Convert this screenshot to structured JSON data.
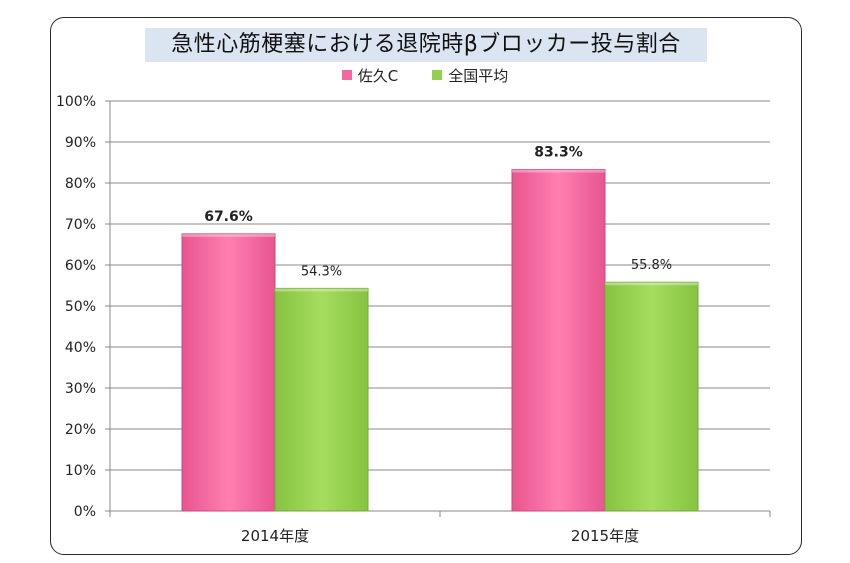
{
  "chart_data": {
    "type": "bar",
    "title": "急性心筋梗塞における退院時βブロッカー投与割合",
    "categories": [
      "2014年度",
      "2015年度"
    ],
    "series": [
      {
        "name": "佐久C",
        "values": [
          67.6,
          83.3
        ],
        "labels": [
          "67.6%",
          "83.3%"
        ],
        "color": "#f4689f"
      },
      {
        "name": "全国平均",
        "values": [
          54.3,
          55.8
        ],
        "labels": [
          "54.3%",
          "55.8%"
        ],
        "color": "#92d050"
      }
    ],
    "ylim": [
      0,
      100
    ],
    "yticks": [
      "0%",
      "10%",
      "20%",
      "30%",
      "40%",
      "50%",
      "60%",
      "70%",
      "80%",
      "90%",
      "100%"
    ],
    "grid": true,
    "legend_position": "top"
  }
}
